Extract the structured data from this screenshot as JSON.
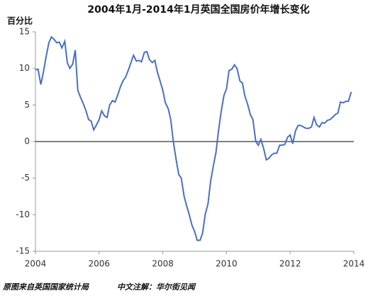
{
  "chart_data": {
    "type": "line",
    "title": "2004年1月-2014年1月英国全国房价年增长变化",
    "y_label": "百分比",
    "source": "原图来自英国国家统计局",
    "note": "中文注解：华尔街见闻",
    "x": [
      2004,
      2004.08,
      2004.17,
      2004.25,
      2004.33,
      2004.42,
      2004.5,
      2004.58,
      2004.67,
      2004.75,
      2004.83,
      2004.92,
      2005,
      2005.08,
      2005.17,
      2005.25,
      2005.33,
      2005.42,
      2005.5,
      2005.58,
      2005.67,
      2005.75,
      2005.83,
      2005.92,
      2006,
      2006.08,
      2006.17,
      2006.25,
      2006.33,
      2006.42,
      2006.5,
      2006.58,
      2006.67,
      2006.75,
      2006.83,
      2006.92,
      2007,
      2007.08,
      2007.17,
      2007.25,
      2007.33,
      2007.42,
      2007.5,
      2007.58,
      2007.67,
      2007.75,
      2007.83,
      2007.92,
      2008,
      2008.08,
      2008.17,
      2008.25,
      2008.33,
      2008.42,
      2008.5,
      2008.58,
      2008.67,
      2008.75,
      2008.83,
      2008.92,
      2009,
      2009.08,
      2009.17,
      2009.25,
      2009.33,
      2009.42,
      2009.5,
      2009.58,
      2009.67,
      2009.75,
      2009.83,
      2009.92,
      2010,
      2010.08,
      2010.17,
      2010.25,
      2010.33,
      2010.42,
      2010.5,
      2010.58,
      2010.67,
      2010.75,
      2010.83,
      2010.92,
      2011,
      2011.08,
      2011.17,
      2011.25,
      2011.33,
      2011.42,
      2011.5,
      2011.58,
      2011.67,
      2011.75,
      2011.83,
      2011.92,
      2012,
      2012.08,
      2012.17,
      2012.25,
      2012.33,
      2012.42,
      2012.5,
      2012.58,
      2012.67,
      2012.75,
      2012.83,
      2012.92,
      2013,
      2013.08,
      2013.17,
      2013.25,
      2013.33,
      2013.42,
      2013.5,
      2013.58,
      2013.67,
      2013.75,
      2013.83,
      2013.92
    ],
    "series": [
      {
        "color": "#4a6fc7",
        "values": [
          9.8,
          9.9,
          7.8,
          9.5,
          11.5,
          13.5,
          14.3,
          14.0,
          13.5,
          13.6,
          12.8,
          13.7,
          10.8,
          10.0,
          10.6,
          12.5,
          7.0,
          6.0,
          5.2,
          4.3,
          3.0,
          2.8,
          1.6,
          2.3,
          3.0,
          4.2,
          3.5,
          3.3,
          5.0,
          5.6,
          5.4,
          6.3,
          7.5,
          8.3,
          8.8,
          9.8,
          10.8,
          11.8,
          11.0,
          11.1,
          10.9,
          12.2,
          12.3,
          11.2,
          10.8,
          11.1,
          9.5,
          8.2,
          7.0,
          5.3,
          4.5,
          3.0,
          0.0,
          -2.5,
          -4.5,
          -5.0,
          -7.5,
          -8.8,
          -10.0,
          -11.5,
          -12.3,
          -13.5,
          -13.5,
          -12.5,
          -10.0,
          -8.5,
          -5.5,
          -3.5,
          -1.5,
          1.5,
          4.0,
          6.3,
          7.2,
          9.7,
          9.9,
          10.5,
          10.0,
          8.3,
          8.0,
          6.2,
          5.0,
          3.7,
          3.0,
          0.0,
          -0.5,
          0.3,
          -1.0,
          -2.5,
          -2.3,
          -1.8,
          -1.6,
          -1.6,
          -0.5,
          -0.5,
          -0.4,
          0.6,
          0.9,
          -0.3,
          1.5,
          2.2,
          2.2,
          2.0,
          1.8,
          1.8,
          2.0,
          3.3,
          2.3,
          2.0,
          2.6,
          2.5,
          2.9,
          3.0,
          3.3,
          3.7,
          3.9,
          5.4,
          5.3,
          5.5,
          5.5,
          6.8
        ]
      }
    ],
    "xlim": [
      2004,
      2014
    ],
    "xticks": [
      2004,
      2006,
      2008,
      2010,
      2012,
      2014
    ],
    "ylim": [
      -15,
      15
    ],
    "yticks": [
      -15,
      -10,
      -5,
      0,
      5,
      10,
      15
    ]
  }
}
